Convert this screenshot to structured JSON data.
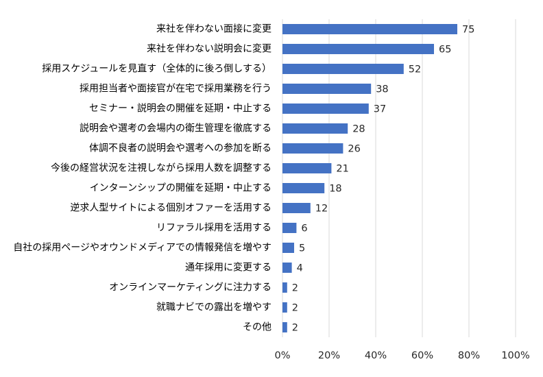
{
  "chart_data": {
    "type": "bar",
    "orientation": "horizontal",
    "title": "",
    "xlabel": "",
    "ylabel": "",
    "categories": [
      "来社を伴わない面接に変更",
      "来社を伴わない説明会に変更",
      "採用スケジュールを見直す（全体的に後ろ倒しする）",
      "採用担当者や面接官が在宅で採用業務を行う",
      "セミナー・説明会の開催を延期・中止する",
      "説明会や選考の会場内の衛生管理を徹底する",
      "体調不良者の説明会や選考への参加を断る",
      "今後の経営状況を注視しながら採用人数を調整する",
      "インターンシップの開催を延期・中止する",
      "逆求人型サイトによる個別オファーを活用する",
      "リファラル採用を活用する",
      "自社の採用ページやオウンドメディアでの情報発信を増やす",
      "通年採用に変更する",
      "オンラインマーケティングに注力する",
      "就職ナビでの露出を増やす",
      "その他"
    ],
    "values": [
      75,
      65,
      52,
      38,
      37,
      28,
      26,
      21,
      18,
      12,
      6,
      5,
      4,
      2,
      2,
      2
    ],
    "xlim": [
      0,
      100
    ],
    "x_ticks": [
      "0%",
      "20%",
      "40%",
      "60%",
      "80%",
      "100%"
    ],
    "x_tick_values": [
      0,
      20,
      40,
      60,
      80,
      100
    ],
    "grid": "vertical",
    "legend": "none",
    "bar_color": "#4472C4",
    "grid_color": "#D9D9D9"
  }
}
